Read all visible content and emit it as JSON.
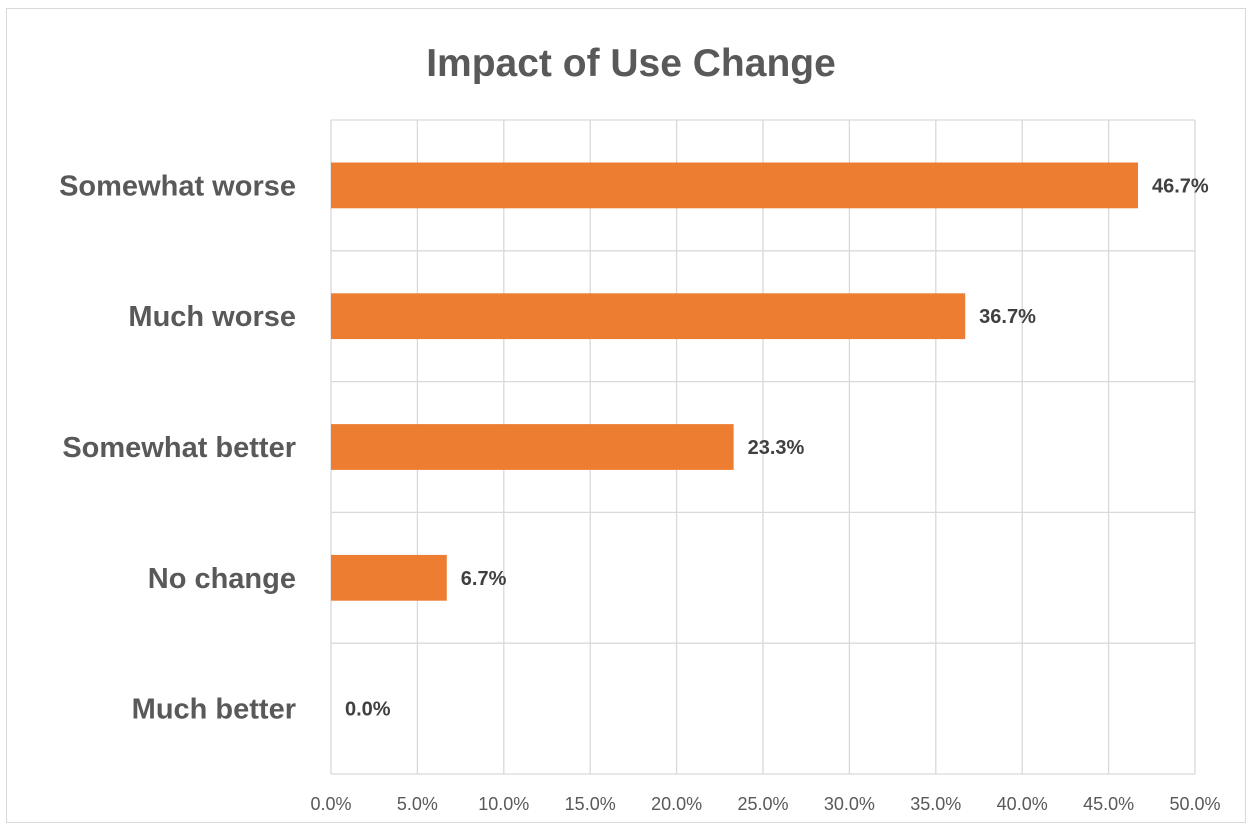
{
  "chart_data": {
    "type": "bar",
    "orientation": "horizontal",
    "title": "Impact of Use Change",
    "categories": [
      "Somewhat worse",
      "Much worse",
      "Somewhat better",
      "No change",
      "Much better"
    ],
    "values": [
      46.7,
      36.7,
      23.3,
      6.7,
      0.0
    ],
    "data_labels": [
      "46.7%",
      "36.7%",
      "23.3%",
      "6.7%",
      "0.0%"
    ],
    "x_ticks": [
      "0.0%",
      "5.0%",
      "10.0%",
      "15.0%",
      "20.0%",
      "25.0%",
      "30.0%",
      "35.0%",
      "40.0%",
      "45.0%",
      "50.0%"
    ],
    "xlim": [
      0,
      50
    ],
    "xlabel": "",
    "ylabel": "",
    "grid": true,
    "legend": "none",
    "colors": {
      "bar": "#ed7d31",
      "grid": "#d9d9d9",
      "text": "#595959",
      "label": "#404040"
    }
  }
}
